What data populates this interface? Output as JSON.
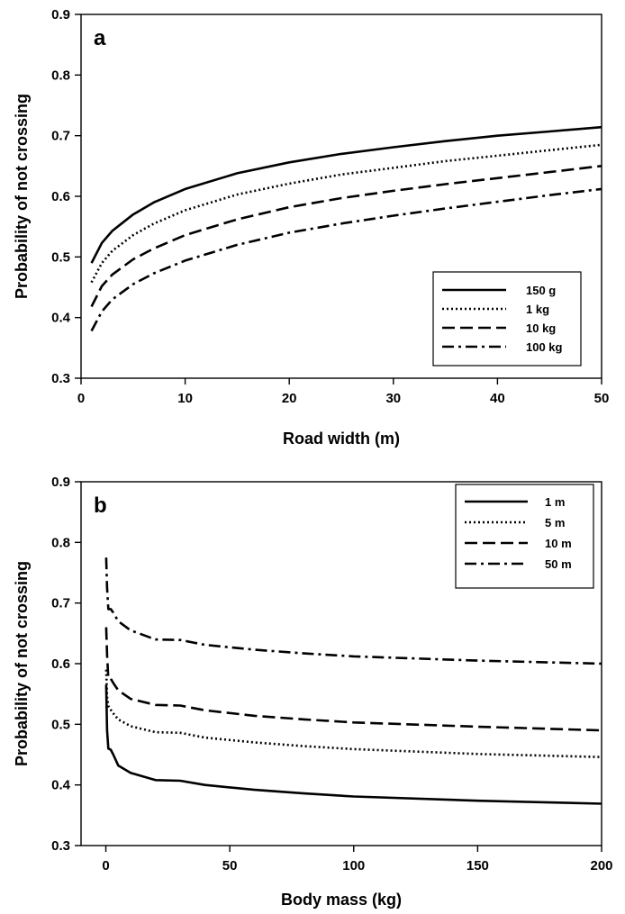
{
  "chart_data": [
    {
      "type": "line",
      "panel_label": "a",
      "xlabel": "Road width (m)",
      "ylabel": "Probability of not crossing",
      "xlim": [
        0,
        50
      ],
      "ylim": [
        0.3,
        0.9
      ],
      "xticks": [
        0,
        10,
        20,
        30,
        40,
        50
      ],
      "yticks": [
        0.3,
        0.4,
        0.5,
        0.6,
        0.7,
        0.8,
        0.9
      ],
      "x_tick_labels": [
        "0",
        "10",
        "20",
        "30",
        "40",
        "50"
      ],
      "y_tick_labels": [
        "0.3",
        "0.4",
        "0.5",
        "0.6",
        "0.7",
        "0.8",
        "0.9"
      ],
      "legend_position": "lower-right",
      "x": [
        1,
        2,
        3,
        5,
        7,
        10,
        15,
        20,
        25,
        30,
        35,
        40,
        45,
        50
      ],
      "series": [
        {
          "name": "150 g",
          "style": "solid",
          "values": [
            0.49,
            0.523,
            0.543,
            0.57,
            0.59,
            0.612,
            0.638,
            0.656,
            0.67,
            0.681,
            0.691,
            0.7,
            0.707,
            0.714
          ]
        },
        {
          "name": "1 kg",
          "style": "dotted",
          "values": [
            0.458,
            0.49,
            0.51,
            0.536,
            0.555,
            0.577,
            0.603,
            0.621,
            0.636,
            0.647,
            0.658,
            0.667,
            0.676,
            0.685
          ]
        },
        {
          "name": "10 kg",
          "style": "dashed",
          "values": [
            0.418,
            0.452,
            0.471,
            0.496,
            0.514,
            0.536,
            0.562,
            0.582,
            0.597,
            0.609,
            0.62,
            0.63,
            0.64,
            0.65
          ]
        },
        {
          "name": "100 kg",
          "style": "dash-dot",
          "values": [
            0.378,
            0.41,
            0.43,
            0.455,
            0.473,
            0.494,
            0.52,
            0.54,
            0.555,
            0.568,
            0.58,
            0.591,
            0.602,
            0.612
          ]
        }
      ]
    },
    {
      "type": "line",
      "panel_label": "b",
      "xlabel": "Body mass (kg)",
      "ylabel": "Probability of not crossing",
      "xlim": [
        -10,
        200
      ],
      "ylim": [
        0.3,
        0.9
      ],
      "xticks": [
        0,
        50,
        100,
        150,
        200
      ],
      "yticks": [
        0.3,
        0.4,
        0.5,
        0.6,
        0.7,
        0.8,
        0.9
      ],
      "x_tick_labels": [
        "0",
        "50",
        "100",
        "150",
        "200"
      ],
      "y_tick_labels": [
        "0.3",
        "0.4",
        "0.5",
        "0.6",
        "0.7",
        "0.8",
        "0.9"
      ],
      "legend_position": "top-right",
      "x": [
        0.15,
        0.5,
        1,
        2,
        3,
        5,
        10,
        20,
        30,
        40,
        60,
        80,
        100,
        150,
        200
      ],
      "series": [
        {
          "name": "1 m",
          "style": "solid",
          "values": [
            0.565,
            0.49,
            0.46,
            0.458,
            0.45,
            0.432,
            0.42,
            0.408,
            0.407,
            0.4,
            0.392,
            0.386,
            0.381,
            0.374,
            0.369
          ]
        },
        {
          "name": "5 m",
          "style": "dotted",
          "values": [
            0.59,
            0.545,
            0.53,
            0.524,
            0.518,
            0.508,
            0.497,
            0.487,
            0.486,
            0.478,
            0.47,
            0.464,
            0.459,
            0.451,
            0.446
          ]
        },
        {
          "name": "10 m",
          "style": "dashed",
          "values": [
            0.66,
            0.615,
            0.575,
            0.575,
            0.568,
            0.556,
            0.542,
            0.532,
            0.531,
            0.523,
            0.514,
            0.508,
            0.503,
            0.496,
            0.49
          ]
        },
        {
          "name": "50 m",
          "style": "dash-dot",
          "values": [
            0.775,
            0.725,
            0.69,
            0.69,
            0.684,
            0.67,
            0.655,
            0.64,
            0.639,
            0.631,
            0.623,
            0.617,
            0.612,
            0.605,
            0.6
          ]
        }
      ]
    }
  ]
}
